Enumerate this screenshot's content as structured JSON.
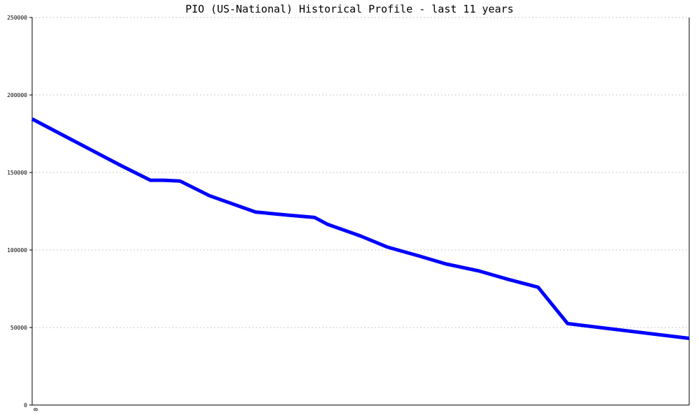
{
  "chart_data": {
    "type": "line",
    "title": "PIO (US-National) Historical Profile - last 11 years",
    "xlabel": "",
    "ylabel": "",
    "ylim": [
      0,
      250000
    ],
    "yticks": [
      0,
      50000,
      100000,
      150000,
      200000,
      250000
    ],
    "ytick_labels": [
      "0",
      "50000",
      "100000",
      "150000",
      "200000",
      "250000"
    ],
    "xtick_labels": [
      "0"
    ],
    "grid": true,
    "legend": "none",
    "series": [
      {
        "color": "#0000ff",
        "x": [
          0,
          0.045,
          0.09,
          0.135,
          0.18,
          0.2,
          0.225,
          0.27,
          0.34,
          0.39,
          0.43,
          0.45,
          0.5,
          0.54,
          0.59,
          0.63,
          0.68,
          0.725,
          0.77,
          0.815,
          1.0
        ],
        "values": [
          184500,
          174500,
          164500,
          154500,
          145000,
          145000,
          144500,
          135000,
          124500,
          122500,
          121000,
          116500,
          109000,
          102000,
          96000,
          91000,
          86500,
          81000,
          76000,
          52500,
          43000
        ]
      }
    ]
  }
}
